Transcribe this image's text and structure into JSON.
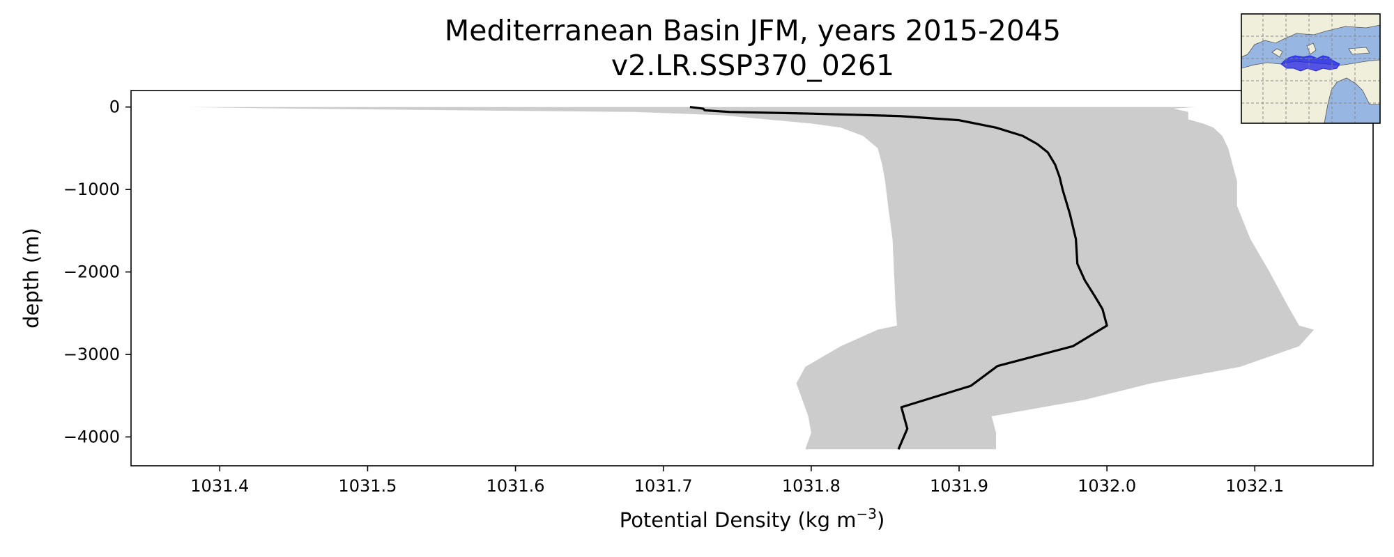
{
  "chart_data": {
    "type": "line",
    "title": "Mediterranean Basin JFM, years 2015-2045",
    "subtitle": "v2.LR.SSP370_0261",
    "xlabel": "Potential Density (kg m",
    "xlabel_sup": "−3",
    "xlabel_end": ")",
    "ylabel": "depth (m)",
    "xlim": [
      1031.34,
      1032.18
    ],
    "ylim": [
      -4350,
      200
    ],
    "x_ticks": [
      1031.4,
      1031.5,
      1031.6,
      1031.7,
      1031.8,
      1031.9,
      1032.0,
      1032.1
    ],
    "x_tick_labels": [
      "1031.4",
      "1031.5",
      "1031.6",
      "1031.7",
      "1031.8",
      "1031.9",
      "1032.0",
      "1032.1"
    ],
    "y_ticks": [
      0,
      -1000,
      -2000,
      -3000,
      -4000
    ],
    "y_tick_labels": [
      "0",
      "−1000",
      "−2000",
      "−3000",
      "−4000"
    ],
    "grid": false,
    "series": [
      {
        "type": "line",
        "color": "#000000",
        "x": [
          1031.718,
          1031.727,
          1031.728,
          1031.745,
          1031.8,
          1031.86,
          1031.9,
          1031.925,
          1031.943,
          1031.953,
          1031.96,
          1031.965,
          1031.968,
          1031.97,
          1031.975,
          1031.979,
          1031.98,
          1031.985,
          1031.992,
          1031.997,
          1032.0,
          1031.977,
          1031.926,
          1031.908,
          1031.861,
          1031.865,
          1031.859
        ],
        "y": [
          0,
          -20,
          -40,
          -60,
          -80,
          -110,
          -160,
          -250,
          -350,
          -450,
          -550,
          -700,
          -850,
          -1000,
          -1300,
          -1600,
          -1900,
          -2100,
          -2300,
          -2450,
          -2650,
          -2900,
          -3140,
          -3380,
          -3640,
          -3900,
          -4150
        ]
      },
      {
        "type": "area",
        "color": "#cccccc",
        "y": [
          0,
          -20,
          -60,
          -100,
          -150,
          -200,
          -250,
          -350,
          -500,
          -700,
          -900,
          -1200,
          -1600,
          -2000,
          -2400,
          -2650,
          -2700,
          -2900,
          -3150,
          -3350,
          -3550,
          -3750,
          -3950,
          -4150
        ],
        "x_low": [
          1031.378,
          1031.45,
          1031.68,
          1031.74,
          1031.77,
          1031.8,
          1031.82,
          1031.835,
          1031.845,
          1031.848,
          1031.85,
          1031.852,
          1031.855,
          1031.856,
          1031.857,
          1031.858,
          1031.845,
          1031.82,
          1031.796,
          1031.79,
          1031.794,
          1031.798,
          1031.8,
          1031.796
        ],
        "x_high": [
          1032.06,
          1032.045,
          1032.055,
          1032.055,
          1032.055,
          1032.065,
          1032.072,
          1032.078,
          1032.082,
          1032.085,
          1032.088,
          1032.088,
          1032.097,
          1032.11,
          1032.122,
          1032.13,
          1032.14,
          1032.13,
          1032.09,
          1032.03,
          1031.985,
          1031.922,
          1031.925,
          1031.925
        ]
      }
    ]
  },
  "inset_map": {
    "ocean_color": "#97b6e2",
    "land_color": "#efefdb",
    "highlight_color": "#1f1fe6",
    "highlight_region": "Mediterranean Sea",
    "icon": "globe-map-icon"
  }
}
